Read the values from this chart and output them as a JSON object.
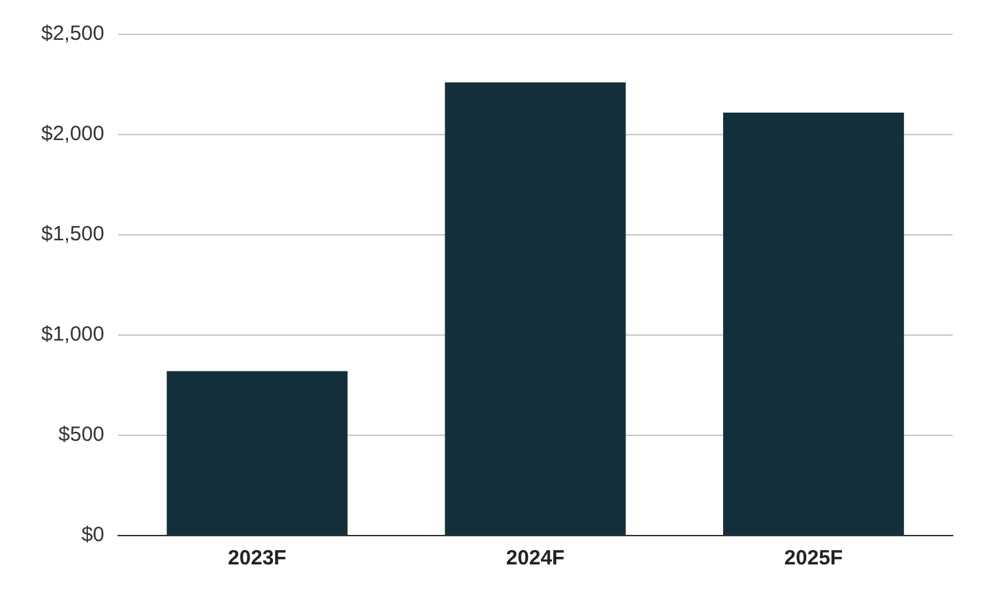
{
  "chart_data": {
    "type": "bar",
    "categories": [
      "2023F",
      "2024F",
      "2025F"
    ],
    "values": [
      820,
      2260,
      2110
    ],
    "color": "#13303a",
    "ylim": [
      0,
      2500
    ],
    "yticks": [
      {
        "value": 0,
        "label": "$0"
      },
      {
        "value": 500,
        "label": "$500"
      },
      {
        "value": 1000,
        "label": "$1,000"
      },
      {
        "value": 1500,
        "label": "$1,500"
      },
      {
        "value": 2000,
        "label": "$2,000"
      },
      {
        "value": 2500,
        "label": "$2,500"
      }
    ],
    "grid": "y",
    "legend": false
  }
}
